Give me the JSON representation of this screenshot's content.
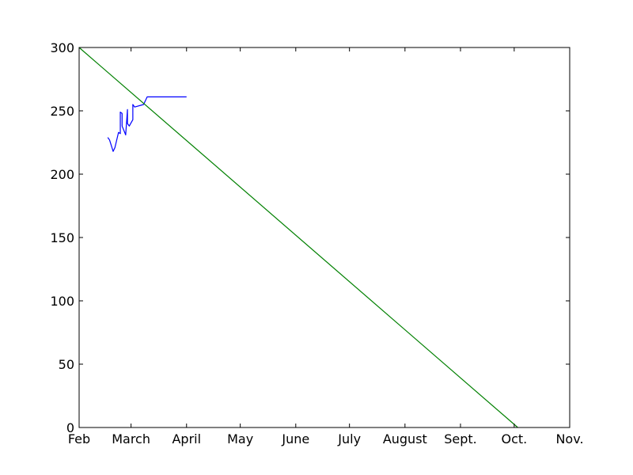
{
  "chart_data": {
    "type": "line",
    "title": "",
    "xlabel": "",
    "ylabel": "",
    "x_axis": {
      "type": "date",
      "range": [
        "2016-02-01",
        "2016-11-01"
      ],
      "ticks": [
        {
          "date": "2016-02-01",
          "label": "Feb"
        },
        {
          "date": "2016-03-01",
          "label": "March"
        },
        {
          "date": "2016-04-01",
          "label": "April"
        },
        {
          "date": "2016-05-01",
          "label": "May"
        },
        {
          "date": "2016-06-01",
          "label": "June"
        },
        {
          "date": "2016-07-01",
          "label": "July"
        },
        {
          "date": "2016-08-01",
          "label": "August"
        },
        {
          "date": "2016-09-01",
          "label": "Sept."
        },
        {
          "date": "2016-10-01",
          "label": "Oct."
        },
        {
          "date": "2016-11-01",
          "label": "Nov."
        }
      ]
    },
    "y_axis": {
      "range": [
        0,
        300
      ],
      "ticks": [
        {
          "value": 0,
          "label": "0"
        },
        {
          "value": 50,
          "label": "50"
        },
        {
          "value": 100,
          "label": "100"
        },
        {
          "value": 150,
          "label": "150"
        },
        {
          "value": 200,
          "label": "200"
        },
        {
          "value": 250,
          "label": "250"
        },
        {
          "value": 300,
          "label": "300"
        }
      ]
    },
    "grid": false,
    "legend": "none",
    "series": [
      {
        "color": "#0000ff",
        "points": [
          {
            "x": "2016-02-17",
            "y": 229
          },
          {
            "x": "2016-02-18",
            "y": 227
          },
          {
            "x": "2016-02-20",
            "y": 218
          },
          {
            "x": "2016-02-21",
            "y": 221
          },
          {
            "x": "2016-02-23",
            "y": 233
          },
          {
            "x": "2016-02-24",
            "y": 232
          },
          {
            "x": "2016-02-24",
            "y": 249
          },
          {
            "x": "2016-02-25",
            "y": 248
          },
          {
            "x": "2016-02-25",
            "y": 238
          },
          {
            "x": "2016-02-27",
            "y": 231
          },
          {
            "x": "2016-02-28",
            "y": 251
          },
          {
            "x": "2016-02-28",
            "y": 240
          },
          {
            "x": "2016-02-29",
            "y": 238
          },
          {
            "x": "2016-03-02",
            "y": 243
          },
          {
            "x": "2016-03-02",
            "y": 255
          },
          {
            "x": "2016-03-03",
            "y": 253
          },
          {
            "x": "2016-03-08",
            "y": 255
          },
          {
            "x": "2016-03-09",
            "y": 258
          },
          {
            "x": "2016-03-10",
            "y": 261
          },
          {
            "x": "2016-04-01",
            "y": 261
          }
        ]
      },
      {
        "color": "#008000",
        "points": [
          {
            "x": "2016-02-01",
            "y": 300
          },
          {
            "x": "2016-10-03",
            "y": 0
          }
        ]
      }
    ]
  }
}
